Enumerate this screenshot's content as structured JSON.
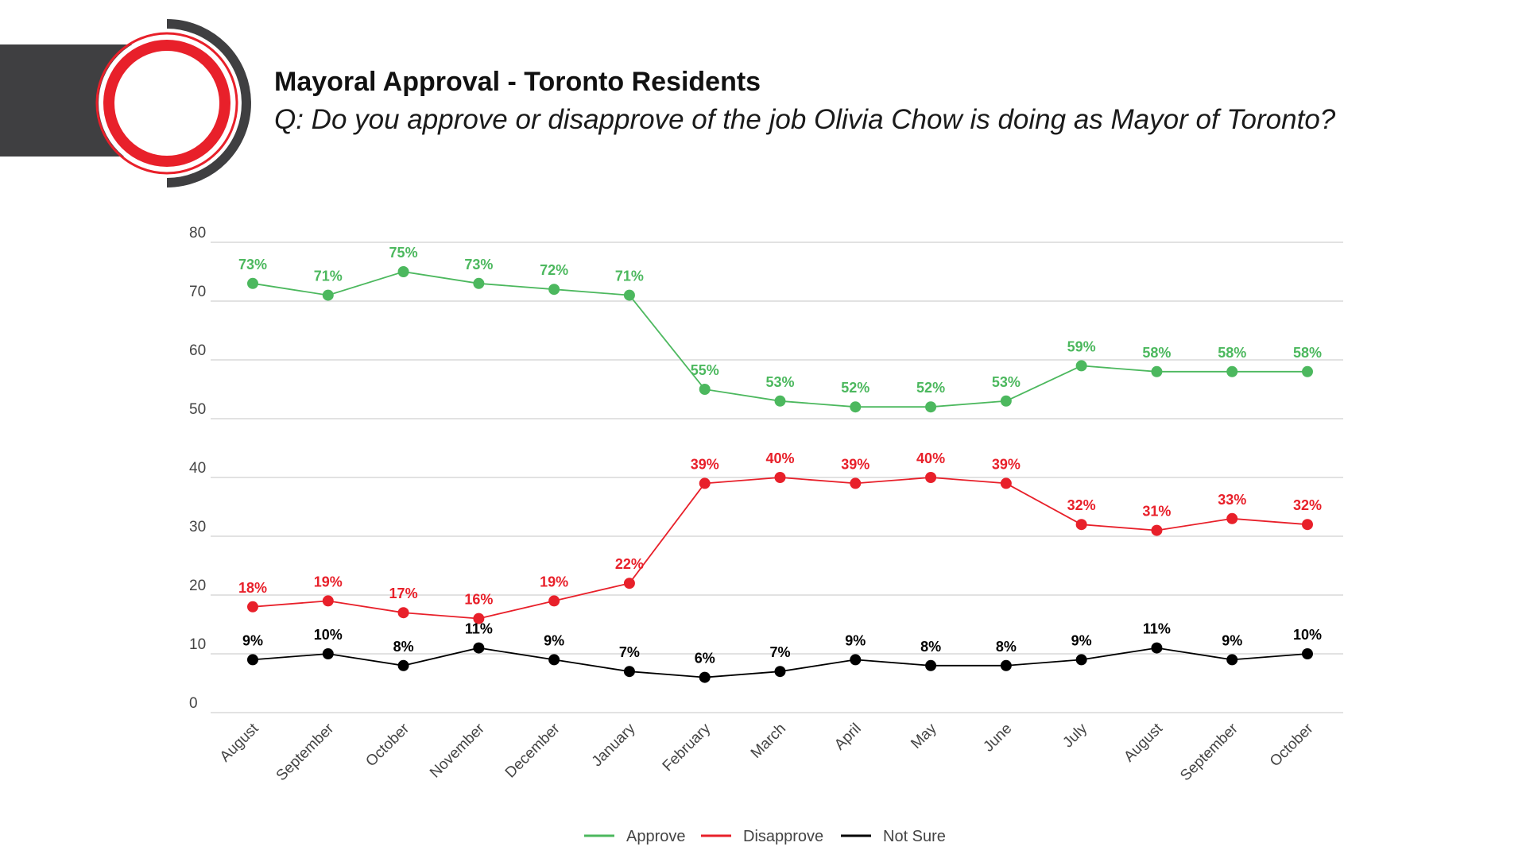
{
  "header": {
    "title": "Mayoral Approval - Toronto Residents",
    "subtitle": "Q: Do you approve or disapprove of the job Olivia Chow is doing as Mayor of Toronto?"
  },
  "chart_data": {
    "type": "line",
    "title": "Mayoral Approval - Toronto Residents",
    "subtitle": "Q: Do you approve or disapprove of the job Olivia Chow is doing as Mayor of Toronto?",
    "xlabel": "",
    "ylabel": "",
    "ylim": [
      0,
      80
    ],
    "yticks": [
      0,
      10,
      20,
      30,
      40,
      50,
      60,
      70,
      80
    ],
    "grid": true,
    "legend_position": "bottom",
    "categories": [
      "August",
      "September",
      "October",
      "November",
      "December",
      "January",
      "February",
      "March",
      "April",
      "May",
      "June",
      "July",
      "August",
      "September",
      "October"
    ],
    "series": [
      {
        "name": "Approve",
        "color": "#4cb85e",
        "values": [
          73,
          71,
          75,
          73,
          72,
          71,
          55,
          53,
          52,
          52,
          53,
          59,
          58,
          58,
          58
        ],
        "labels": [
          "73%",
          "71%",
          "75%",
          "73%",
          "72%",
          "71%",
          "55%",
          "53%",
          "52%",
          "52%",
          "53%",
          "59%",
          "58%",
          "58%",
          "58%"
        ]
      },
      {
        "name": "Disapprove",
        "color": "#e8202a",
        "values": [
          18,
          19,
          17,
          16,
          19,
          22,
          39,
          40,
          39,
          40,
          39,
          32,
          31,
          33,
          32
        ],
        "labels": [
          "18%",
          "19%",
          "17%",
          "16%",
          "19%",
          "22%",
          "39%",
          "40%",
          "39%",
          "40%",
          "39%",
          "32%",
          "31%",
          "33%",
          "32%"
        ]
      },
      {
        "name": "Not Sure",
        "color": "#000000",
        "values": [
          9,
          10,
          8,
          11,
          9,
          7,
          6,
          7,
          9,
          8,
          8,
          9,
          11,
          9,
          10
        ],
        "labels": [
          "9%",
          "10%",
          "8%",
          "11%",
          "9%",
          "7%",
          "6%",
          "7%",
          "9%",
          "8%",
          "8%",
          "9%",
          "11%",
          "9%",
          "10%"
        ]
      }
    ]
  }
}
